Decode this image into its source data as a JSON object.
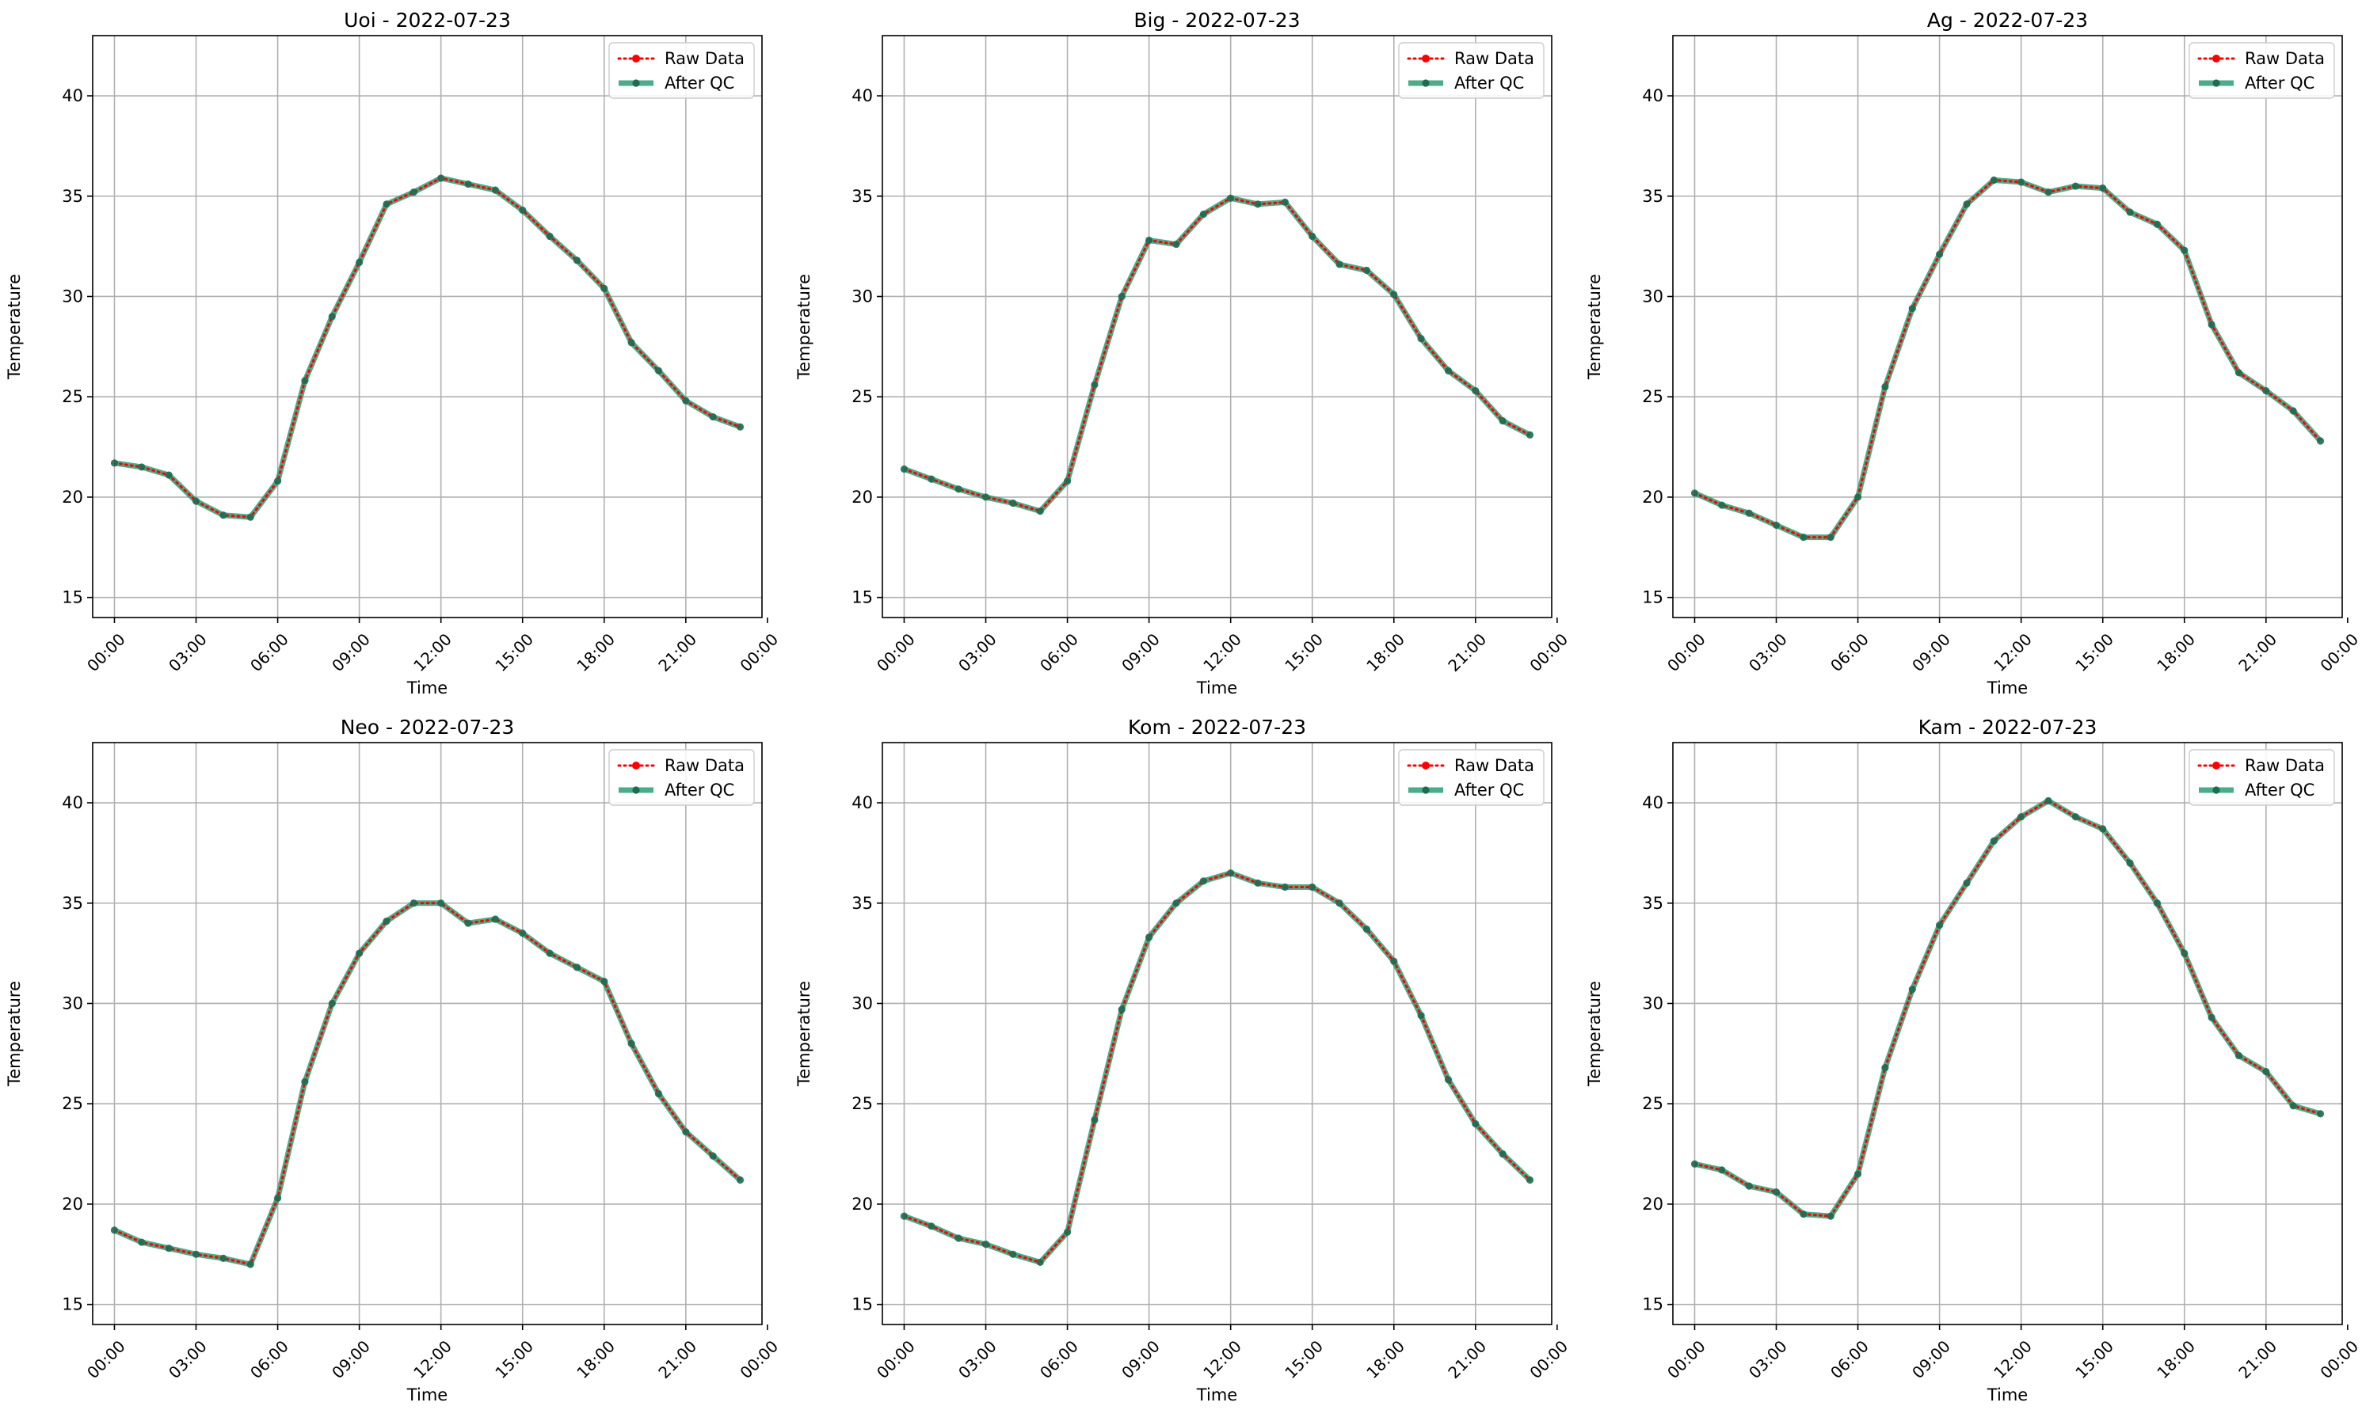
{
  "colors": {
    "raw": "#ff0000",
    "qc": "#2a9d74",
    "grid": "#b0b0b0",
    "axis": "#000000"
  },
  "legend": {
    "placement": "top-right",
    "raw_label": "Raw Data",
    "qc_label": "After QC"
  },
  "chart_data": [
    {
      "type": "line",
      "title": "Uoi - 2022-07-23",
      "xlabel": "Time",
      "ylabel": "Temperature",
      "ylim": [
        14,
        43
      ],
      "xlim": [
        -0.8,
        23.8
      ],
      "yticks": [
        15,
        20,
        25,
        30,
        35,
        40
      ],
      "xticks": [
        0,
        3,
        6,
        9,
        12,
        15,
        18,
        21,
        24
      ],
      "xticklabels": [
        "00:00",
        "03:00",
        "06:00",
        "09:00",
        "12:00",
        "15:00",
        "18:00",
        "21:00",
        "00:00"
      ],
      "grid": true,
      "x": [
        0,
        1,
        2,
        3,
        4,
        5,
        6,
        7,
        8,
        9,
        10,
        11,
        12,
        13,
        14,
        15,
        16,
        17,
        18,
        19,
        20,
        21,
        22,
        23
      ],
      "series": [
        {
          "name": "Raw Data",
          "values": [
            21.7,
            21.5,
            21.1,
            19.8,
            19.1,
            19.0,
            20.8,
            25.8,
            29.0,
            31.7,
            34.6,
            35.2,
            35.9,
            35.6,
            35.3,
            34.3,
            33.0,
            31.8,
            30.4,
            27.7,
            26.3,
            24.8,
            24.0,
            23.5
          ]
        },
        {
          "name": "After QC",
          "values": [
            21.7,
            21.5,
            21.1,
            19.8,
            19.1,
            19.0,
            20.8,
            25.8,
            29.0,
            31.7,
            34.6,
            35.2,
            35.9,
            35.6,
            35.3,
            34.3,
            33.0,
            31.8,
            30.4,
            27.7,
            26.3,
            24.8,
            24.0,
            23.5
          ]
        }
      ]
    },
    {
      "type": "line",
      "title": "Big - 2022-07-23",
      "xlabel": "Time",
      "ylabel": "Temperature",
      "ylim": [
        14,
        43
      ],
      "xlim": [
        -0.8,
        23.8
      ],
      "yticks": [
        15,
        20,
        25,
        30,
        35,
        40
      ],
      "xticks": [
        0,
        3,
        6,
        9,
        12,
        15,
        18,
        21,
        24
      ],
      "xticklabels": [
        "00:00",
        "03:00",
        "06:00",
        "09:00",
        "12:00",
        "15:00",
        "18:00",
        "21:00",
        "00:00"
      ],
      "grid": true,
      "x": [
        0,
        1,
        2,
        3,
        4,
        5,
        6,
        7,
        8,
        9,
        10,
        11,
        12,
        13,
        14,
        15,
        16,
        17,
        18,
        19,
        20,
        21,
        22,
        23
      ],
      "series": [
        {
          "name": "Raw Data",
          "values": [
            21.4,
            20.9,
            20.4,
            20.0,
            19.7,
            19.3,
            20.8,
            25.6,
            30.0,
            32.8,
            32.6,
            34.1,
            34.9,
            34.6,
            34.7,
            33.0,
            31.6,
            31.3,
            30.1,
            27.9,
            26.3,
            25.3,
            23.8,
            23.1
          ]
        },
        {
          "name": "After QC",
          "values": [
            21.4,
            20.9,
            20.4,
            20.0,
            19.7,
            19.3,
            20.8,
            25.6,
            30.0,
            32.8,
            32.6,
            34.1,
            34.9,
            34.6,
            34.7,
            33.0,
            31.6,
            31.3,
            30.1,
            27.9,
            26.3,
            25.3,
            23.8,
            23.1
          ]
        }
      ]
    },
    {
      "type": "line",
      "title": "Ag - 2022-07-23",
      "xlabel": "Time",
      "ylabel": "Temperature",
      "ylim": [
        14,
        43
      ],
      "xlim": [
        -0.8,
        23.8
      ],
      "yticks": [
        15,
        20,
        25,
        30,
        35,
        40
      ],
      "xticks": [
        0,
        3,
        6,
        9,
        12,
        15,
        18,
        21,
        24
      ],
      "xticklabels": [
        "00:00",
        "03:00",
        "06:00",
        "09:00",
        "12:00",
        "15:00",
        "18:00",
        "21:00",
        "00:00"
      ],
      "grid": true,
      "x": [
        0,
        1,
        2,
        3,
        4,
        5,
        6,
        7,
        8,
        9,
        10,
        11,
        12,
        13,
        14,
        15,
        16,
        17,
        18,
        19,
        20,
        21,
        22,
        23
      ],
      "series": [
        {
          "name": "Raw Data",
          "values": [
            20.2,
            19.6,
            19.2,
            18.6,
            18.0,
            18.0,
            20.0,
            25.5,
            29.4,
            32.1,
            34.6,
            35.8,
            35.7,
            35.2,
            35.5,
            35.4,
            34.2,
            33.6,
            32.3,
            28.6,
            26.2,
            25.3,
            24.3,
            22.8
          ]
        },
        {
          "name": "After QC",
          "values": [
            20.2,
            19.6,
            19.2,
            18.6,
            18.0,
            18.0,
            20.0,
            25.5,
            29.4,
            32.1,
            34.6,
            35.8,
            35.7,
            35.2,
            35.5,
            35.4,
            34.2,
            33.6,
            32.3,
            28.6,
            26.2,
            25.3,
            24.3,
            22.8
          ]
        }
      ]
    },
    {
      "type": "line",
      "title": "Neo - 2022-07-23",
      "xlabel": "Time",
      "ylabel": "Temperature",
      "ylim": [
        14,
        43
      ],
      "xlim": [
        -0.8,
        23.8
      ],
      "yticks": [
        15,
        20,
        25,
        30,
        35,
        40
      ],
      "xticks": [
        0,
        3,
        6,
        9,
        12,
        15,
        18,
        21,
        24
      ],
      "xticklabels": [
        "00:00",
        "03:00",
        "06:00",
        "09:00",
        "12:00",
        "15:00",
        "18:00",
        "21:00",
        "00:00"
      ],
      "grid": true,
      "x": [
        0,
        1,
        2,
        3,
        4,
        5,
        6,
        7,
        8,
        9,
        10,
        11,
        12,
        13,
        14,
        15,
        16,
        17,
        18,
        19,
        20,
        21,
        22,
        23
      ],
      "series": [
        {
          "name": "Raw Data",
          "values": [
            18.7,
            18.1,
            17.8,
            17.5,
            17.3,
            17.0,
            20.3,
            26.1,
            30.0,
            32.5,
            34.1,
            35.0,
            35.0,
            34.0,
            34.2,
            33.5,
            32.5,
            31.8,
            31.1,
            28.0,
            25.5,
            23.6,
            22.4,
            21.2
          ]
        },
        {
          "name": "After QC",
          "values": [
            18.7,
            18.1,
            17.8,
            17.5,
            17.3,
            17.0,
            20.3,
            26.1,
            30.0,
            32.5,
            34.1,
            35.0,
            35.0,
            34.0,
            34.2,
            33.5,
            32.5,
            31.8,
            31.1,
            28.0,
            25.5,
            23.6,
            22.4,
            21.2
          ]
        }
      ]
    },
    {
      "type": "line",
      "title": "Kom - 2022-07-23",
      "xlabel": "Time",
      "ylabel": "Temperature",
      "ylim": [
        14,
        43
      ],
      "xlim": [
        -0.8,
        23.8
      ],
      "yticks": [
        15,
        20,
        25,
        30,
        35,
        40
      ],
      "xticks": [
        0,
        3,
        6,
        9,
        12,
        15,
        18,
        21,
        24
      ],
      "xticklabels": [
        "00:00",
        "03:00",
        "06:00",
        "09:00",
        "12:00",
        "15:00",
        "18:00",
        "21:00",
        "00:00"
      ],
      "grid": true,
      "x": [
        0,
        1,
        2,
        3,
        4,
        5,
        6,
        7,
        8,
        9,
        10,
        11,
        12,
        13,
        14,
        15,
        16,
        17,
        18,
        19,
        20,
        21,
        22,
        23
      ],
      "series": [
        {
          "name": "Raw Data",
          "values": [
            19.4,
            18.9,
            18.3,
            18.0,
            17.5,
            17.1,
            18.6,
            24.2,
            29.7,
            33.3,
            35.0,
            36.1,
            36.5,
            36.0,
            35.8,
            35.8,
            35.0,
            33.7,
            32.1,
            29.4,
            26.2,
            24.0,
            22.5,
            21.2
          ]
        },
        {
          "name": "After QC",
          "values": [
            19.4,
            18.9,
            18.3,
            18.0,
            17.5,
            17.1,
            18.6,
            24.2,
            29.7,
            33.3,
            35.0,
            36.1,
            36.5,
            36.0,
            35.8,
            35.8,
            35.0,
            33.7,
            32.1,
            29.4,
            26.2,
            24.0,
            22.5,
            21.2
          ]
        }
      ]
    },
    {
      "type": "line",
      "title": "Kam - 2022-07-23",
      "xlabel": "Time",
      "ylabel": "Temperature",
      "ylim": [
        14,
        43
      ],
      "xlim": [
        -0.8,
        23.8
      ],
      "yticks": [
        15,
        20,
        25,
        30,
        35,
        40
      ],
      "xticks": [
        0,
        3,
        6,
        9,
        12,
        15,
        18,
        21,
        24
      ],
      "xticklabels": [
        "00:00",
        "03:00",
        "06:00",
        "09:00",
        "12:00",
        "15:00",
        "18:00",
        "21:00",
        "00:00"
      ],
      "grid": true,
      "x": [
        0,
        1,
        2,
        3,
        4,
        5,
        6,
        7,
        8,
        9,
        10,
        11,
        12,
        13,
        14,
        15,
        16,
        17,
        18,
        19,
        20,
        21,
        22,
        23
      ],
      "series": [
        {
          "name": "Raw Data",
          "values": [
            22.0,
            21.7,
            20.9,
            20.6,
            19.5,
            19.4,
            21.5,
            26.8,
            30.7,
            33.9,
            36.0,
            38.1,
            39.3,
            40.1,
            39.3,
            38.7,
            37.0,
            35.0,
            32.5,
            29.3,
            27.4,
            26.6,
            24.9,
            24.5
          ]
        },
        {
          "name": "After QC",
          "values": [
            22.0,
            21.7,
            20.9,
            20.6,
            19.5,
            19.4,
            21.5,
            26.8,
            30.7,
            33.9,
            36.0,
            38.1,
            39.3,
            40.1,
            39.3,
            38.7,
            37.0,
            35.0,
            32.5,
            29.3,
            27.4,
            26.6,
            24.9,
            24.5
          ]
        }
      ]
    }
  ]
}
